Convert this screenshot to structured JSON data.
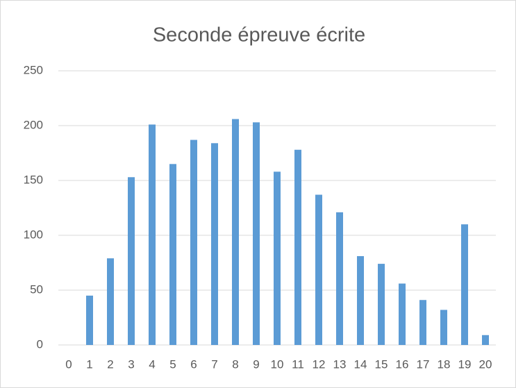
{
  "chart_data": {
    "type": "bar",
    "title": "Seconde épreuve écrite",
    "categories": [
      "0",
      "1",
      "2",
      "3",
      "4",
      "5",
      "6",
      "7",
      "8",
      "9",
      "10",
      "11",
      "12",
      "13",
      "14",
      "15",
      "16",
      "17",
      "18",
      "19",
      "20"
    ],
    "values": [
      0,
      45,
      79,
      153,
      201,
      165,
      187,
      184,
      206,
      203,
      158,
      178,
      137,
      121,
      81,
      74,
      56,
      41,
      32,
      110,
      9
    ],
    "color": "#5b9bd5",
    "ylim": [
      0,
      250
    ],
    "yticks": [
      0,
      50,
      100,
      150,
      200,
      250
    ],
    "grid": true
  }
}
